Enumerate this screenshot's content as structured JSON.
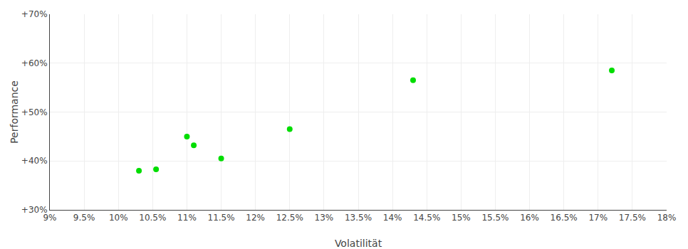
{
  "chart_data": {
    "type": "scatter",
    "x_label": "Volatilität",
    "y_label": "Performance",
    "x": [
      10.3,
      10.55,
      11.0,
      11.1,
      11.5,
      12.5,
      14.3,
      17.2
    ],
    "values": [
      38.0,
      38.3,
      45.0,
      43.2,
      40.5,
      46.5,
      56.5,
      58.5
    ],
    "color": "#00dd00",
    "xlim": [
      9.0,
      18.0
    ],
    "xticks": [
      {
        "value": 9.0,
        "label": "9%"
      },
      {
        "value": 9.5,
        "label": "9.5%"
      },
      {
        "value": 10.0,
        "label": "10%"
      },
      {
        "value": 10.5,
        "label": "10.5%"
      },
      {
        "value": 11.0,
        "label": "11%"
      },
      {
        "value": 11.5,
        "label": "11.5%"
      },
      {
        "value": 12.0,
        "label": "12%"
      },
      {
        "value": 12.5,
        "label": "12.5%"
      },
      {
        "value": 13.0,
        "label": "13%"
      },
      {
        "value": 13.5,
        "label": "13.5%"
      },
      {
        "value": 14.0,
        "label": "14%"
      },
      {
        "value": 14.5,
        "label": "14.5%"
      },
      {
        "value": 15.0,
        "label": "15%"
      },
      {
        "value": 15.5,
        "label": "15.5%"
      },
      {
        "value": 16.0,
        "label": "16%"
      },
      {
        "value": 16.5,
        "label": "16.5%"
      },
      {
        "value": 17.0,
        "label": "17%"
      },
      {
        "value": 17.5,
        "label": "17.5%"
      },
      {
        "value": 18.0,
        "label": "18%"
      }
    ],
    "ylim": [
      30,
      70
    ],
    "yticks": [
      {
        "value": 30,
        "label": "+30%"
      },
      {
        "value": 40,
        "label": "+40%"
      },
      {
        "value": 50,
        "label": "+50%"
      },
      {
        "value": 60,
        "label": "+60%"
      },
      {
        "value": 70,
        "label": "+70%"
      }
    ],
    "grid": true
  }
}
